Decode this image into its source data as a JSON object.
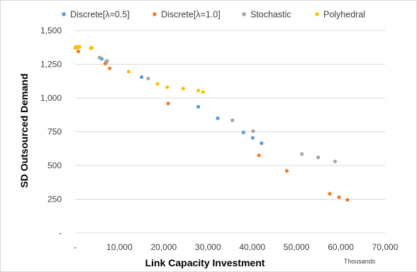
{
  "chart_data": {
    "type": "scatter",
    "title": "",
    "xlabel": "Link Capacity Investment",
    "ylabel": "SD Outsourced Demand",
    "x_units_label": "Thousands",
    "xlim": [
      0,
      70000
    ],
    "ylim": [
      0,
      1500
    ],
    "x_ticks": [
      0,
      10000,
      20000,
      30000,
      40000,
      50000,
      60000,
      70000
    ],
    "x_tick_labels": [
      "-",
      "10,000",
      "20,000",
      "30,000",
      "40,000",
      "50,000",
      "60,000",
      "70,000"
    ],
    "y_ticks": [
      0,
      250,
      500,
      750,
      1000,
      1250,
      1500
    ],
    "y_tick_labels": [
      "-",
      "250",
      "500",
      "750",
      "1,000",
      "1,250",
      "1,500"
    ],
    "grid": "horizontal",
    "legend_position": "top",
    "series": [
      {
        "name": "Discrete[λ=0.5]",
        "color": "#5b9bd5",
        "points": [
          [
            300,
            1380
          ],
          [
            6000,
            1290
          ],
          [
            7000,
            1265
          ],
          [
            15000,
            1155
          ],
          [
            27800,
            935
          ],
          [
            32200,
            850
          ],
          [
            38000,
            745
          ],
          [
            40100,
            705
          ],
          [
            42100,
            665
          ]
        ]
      },
      {
        "name": "Discrete[λ=1.0]",
        "color": "#ed7d31",
        "points": [
          [
            700,
            1345
          ],
          [
            6800,
            1255
          ],
          [
            7800,
            1220
          ],
          [
            21000,
            960
          ],
          [
            41500,
            575
          ],
          [
            47800,
            460
          ],
          [
            57500,
            290
          ],
          [
            59600,
            265
          ],
          [
            61500,
            245
          ]
        ]
      },
      {
        "name": "Stochastic",
        "color": "#a5a5a5",
        "points": [
          [
            5500,
            1300
          ],
          [
            7200,
            1275
          ],
          [
            16500,
            1145
          ],
          [
            35500,
            835
          ],
          [
            40200,
            755
          ],
          [
            51200,
            585
          ],
          [
            54900,
            560
          ],
          [
            58700,
            530
          ]
        ]
      },
      {
        "name": "Polyhedral",
        "color": "#ffc000",
        "points": [
          [
            0,
            1370
          ],
          [
            200,
            1380
          ],
          [
            600,
            1375
          ],
          [
            1000,
            1380
          ],
          [
            3500,
            1370
          ],
          [
            3800,
            1372
          ],
          [
            12100,
            1195
          ],
          [
            18600,
            1105
          ],
          [
            20800,
            1080
          ],
          [
            24400,
            1070
          ],
          [
            27800,
            1055
          ],
          [
            28900,
            1045
          ]
        ]
      }
    ]
  }
}
